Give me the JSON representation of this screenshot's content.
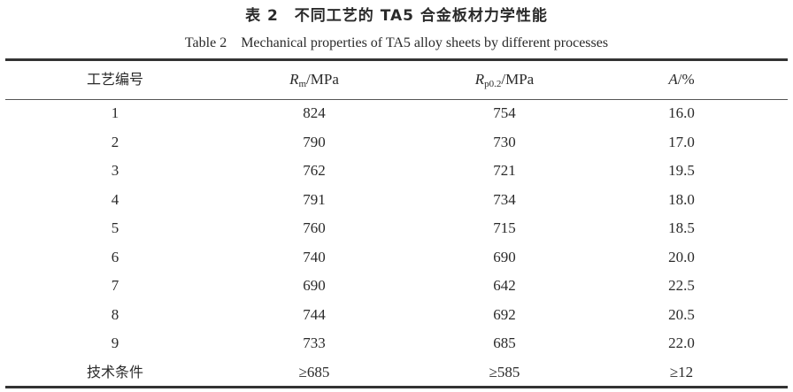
{
  "title_cn": "表 2　不同工艺的 TA5 合金板材力学性能",
  "title_en": "Table 2　Mechanical properties of TA5 alloy sheets by different processes",
  "header": {
    "col0": "工艺编号",
    "col1_sym": "R",
    "col1_sub": "m",
    "col1_unit": "/MPa",
    "col2_sym": "R",
    "col2_sub": "p0.2",
    "col2_unit": "/MPa",
    "col3_sym": "A",
    "col3_unit": "/%"
  },
  "rows": [
    [
      "1",
      "824",
      "754",
      "16.0"
    ],
    [
      "2",
      "790",
      "730",
      "17.0"
    ],
    [
      "3",
      "762",
      "721",
      "19.5"
    ],
    [
      "4",
      "791",
      "734",
      "18.0"
    ],
    [
      "5",
      "760",
      "715",
      "18.5"
    ],
    [
      "6",
      "740",
      "690",
      "20.0"
    ],
    [
      "7",
      "690",
      "642",
      "22.5"
    ],
    [
      "8",
      "744",
      "692",
      "20.5"
    ],
    [
      "9",
      "733",
      "685",
      "22.0"
    ],
    [
      "技术条件",
      "≥685",
      "≥585",
      "≥12"
    ]
  ]
}
